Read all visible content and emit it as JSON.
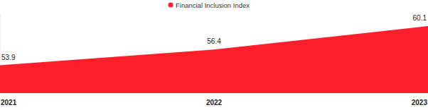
{
  "chart_data": {
    "type": "area",
    "title": null,
    "series": [
      {
        "name": "Financial Inclusion Index",
        "color": "#fe1f2b",
        "values": [
          53.9,
          56.4,
          60.1
        ]
      }
    ],
    "categories": [
      "2021",
      "2022",
      "2023"
    ],
    "ylim": [
      49.5,
      62
    ],
    "yticks": [],
    "grid": false,
    "legend": "top",
    "data_labels": true,
    "tick_labels": "x"
  }
}
